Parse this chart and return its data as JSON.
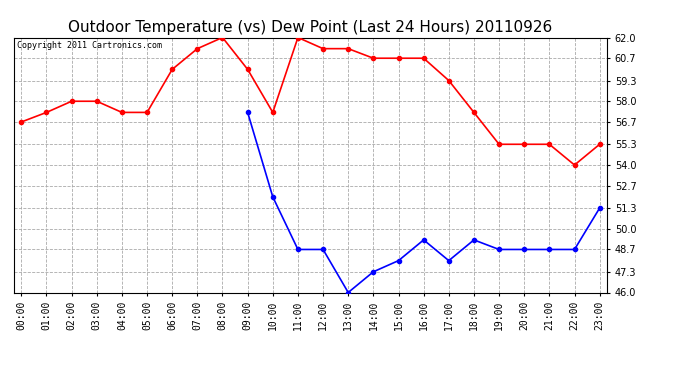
{
  "title": "Outdoor Temperature (vs) Dew Point (Last 24 Hours) 20110926",
  "copyright": "Copyright 2011 Cartronics.com",
  "x_labels": [
    "00:00",
    "01:00",
    "02:00",
    "03:00",
    "04:00",
    "05:00",
    "06:00",
    "07:00",
    "08:00",
    "09:00",
    "10:00",
    "11:00",
    "12:00",
    "13:00",
    "14:00",
    "15:00",
    "16:00",
    "17:00",
    "18:00",
    "19:00",
    "20:00",
    "21:00",
    "22:00",
    "23:00"
  ],
  "temp_values": [
    56.7,
    57.3,
    58.0,
    58.0,
    57.3,
    57.3,
    60.0,
    61.3,
    62.0,
    60.0,
    57.3,
    62.0,
    61.3,
    61.3,
    60.7,
    60.7,
    60.7,
    59.3,
    57.3,
    55.3,
    55.3,
    55.3,
    54.0,
    55.3
  ],
  "dew_values": [
    null,
    null,
    null,
    null,
    null,
    null,
    null,
    null,
    null,
    57.3,
    52.0,
    48.7,
    48.7,
    46.0,
    47.3,
    48.0,
    49.3,
    48.0,
    49.3,
    48.7,
    48.7,
    48.7,
    48.7,
    51.3
  ],
  "temp_color": "#ff0000",
  "dew_color": "#0000ff",
  "bg_color": "#ffffff",
  "plot_bg_color": "#ffffff",
  "grid_color": "#aaaaaa",
  "ylim": [
    46.0,
    62.0
  ],
  "yticks": [
    46.0,
    47.3,
    48.7,
    50.0,
    51.3,
    52.7,
    54.0,
    55.3,
    56.7,
    58.0,
    59.3,
    60.7,
    62.0
  ],
  "title_fontsize": 11,
  "copyright_fontsize": 6,
  "tick_fontsize": 7,
  "marker": "o",
  "markersize": 3,
  "linewidth": 1.2
}
